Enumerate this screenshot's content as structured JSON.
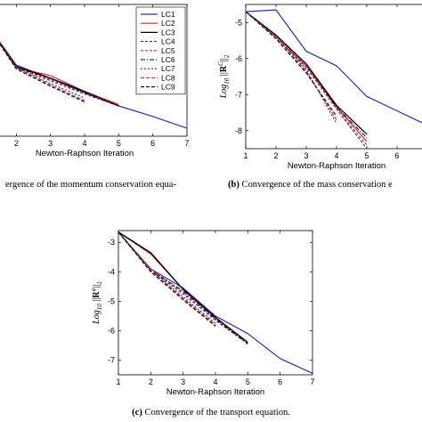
{
  "series_style": [
    {
      "color": "#2b2fa8",
      "dash": "",
      "width": 1.2
    },
    {
      "color": "#cc2a2a",
      "dash": "",
      "width": 1.2
    },
    {
      "color": "#000000",
      "dash": "",
      "width": 1.3
    },
    {
      "color": "#2b2fa8",
      "dash": "3,2",
      "width": 1.1
    },
    {
      "color": "#cc2a2a",
      "dash": "3,2",
      "width": 1.1
    },
    {
      "color": "#000000",
      "dash": "5,2,1,2",
      "width": 1.0
    },
    {
      "color": "#2b2fa8",
      "dash": "2,2",
      "width": 1.1
    },
    {
      "color": "#cc2a2a",
      "dash": "4,2",
      "width": 1.1
    },
    {
      "color": "#000000",
      "dash": "4,2",
      "width": 1.1
    }
  ],
  "chart_data": [
    {
      "type": "line",
      "xlabel": "Newton-Raphson Iteration",
      "ylabel": "",
      "xlim": [
        1,
        7
      ],
      "ylim": [
        -6.5,
        -1.5
      ],
      "xticks": [
        2,
        3,
        4,
        5,
        6,
        7
      ],
      "yticks": [],
      "caption": "ergence of the momentum conservation equa-",
      "caption_bold": "",
      "legend": {
        "position": "top-right",
        "entries": [
          "LC1",
          "LC2",
          "LC3",
          "LC4",
          "LC5",
          "LC6",
          "LC7",
          "LC8",
          "LC9"
        ]
      },
      "series": [
        {
          "name": "LC1",
          "x": [
            1,
            2,
            3,
            4,
            5,
            6,
            7
          ],
          "y": [
            -2.0,
            -3.8,
            -4.3,
            -4.85,
            -5.35,
            -5.75,
            -6.2
          ]
        },
        {
          "name": "LC2",
          "x": [
            1,
            2,
            3,
            4,
            5
          ],
          "y": [
            -2.0,
            -3.9,
            -4.2,
            -4.8,
            -5.3
          ]
        },
        {
          "name": "LC3",
          "x": [
            1,
            2,
            3,
            4,
            5
          ],
          "y": [
            -2.0,
            -3.85,
            -4.3,
            -4.8,
            -5.35
          ]
        },
        {
          "name": "LC4",
          "x": [
            1,
            2,
            3,
            4,
            5
          ],
          "y": [
            -2.0,
            -3.9,
            -4.4,
            -4.9,
            -5.35
          ]
        },
        {
          "name": "LC5",
          "x": [
            1,
            2,
            3,
            4,
            5
          ],
          "y": [
            -2.0,
            -3.9,
            -4.35,
            -4.85,
            -5.3
          ]
        },
        {
          "name": "LC6",
          "x": [
            1,
            2,
            3,
            4,
            5
          ],
          "y": [
            -2.0,
            -3.9,
            -4.3,
            -4.85,
            -5.35
          ]
        },
        {
          "name": "LC7",
          "x": [
            1,
            2,
            3,
            4
          ],
          "y": [
            -2.0,
            -3.9,
            -4.5,
            -5.05
          ]
        },
        {
          "name": "LC8",
          "x": [
            1,
            2,
            3,
            4
          ],
          "y": [
            -2.0,
            -3.9,
            -4.55,
            -5.15
          ]
        },
        {
          "name": "LC9",
          "x": [
            1,
            2,
            3,
            4
          ],
          "y": [
            -2.0,
            -3.95,
            -4.6,
            -5.2
          ]
        }
      ]
    },
    {
      "type": "line",
      "xlabel": "Newton-Raphson Iteration",
      "ylabel": "Log10 ||R^C||2",
      "xlim": [
        1,
        7
      ],
      "ylim": [
        -8.5,
        -4.5
      ],
      "xticks": [
        1,
        2,
        3,
        4,
        5,
        6,
        7
      ],
      "yticks": [
        -5,
        -6,
        -7,
        -8
      ],
      "caption": "Convergence of the mass conservation e",
      "caption_bold": "(b)",
      "legend": null,
      "series": [
        {
          "name": "LC1",
          "x": [
            1,
            2,
            3,
            4,
            5,
            6,
            7
          ],
          "y": [
            -4.7,
            -4.65,
            -5.8,
            -6.2,
            -7.05,
            -7.45,
            -7.85
          ]
        },
        {
          "name": "LC2",
          "x": [
            1,
            2,
            3,
            4,
            5
          ],
          "y": [
            -4.7,
            -5.4,
            -6.2,
            -7.35,
            -8.3
          ]
        },
        {
          "name": "LC3",
          "x": [
            1,
            2,
            3,
            4,
            5
          ],
          "y": [
            -4.7,
            -5.35,
            -6.15,
            -7.3,
            -8.1
          ]
        },
        {
          "name": "LC4",
          "x": [
            1,
            2,
            3,
            4,
            5
          ],
          "y": [
            -4.7,
            -5.4,
            -6.25,
            -7.4,
            -8.5
          ]
        },
        {
          "name": "LC5",
          "x": [
            1,
            2,
            3,
            4,
            5
          ],
          "y": [
            -4.7,
            -5.4,
            -6.2,
            -7.4,
            -8.4
          ]
        },
        {
          "name": "LC6",
          "x": [
            1,
            2,
            3,
            4,
            5
          ],
          "y": [
            -4.7,
            -5.35,
            -6.15,
            -7.35,
            -8.2
          ]
        },
        {
          "name": "LC7",
          "x": [
            1,
            2,
            3,
            4
          ],
          "y": [
            -4.7,
            -5.4,
            -6.3,
            -7.8
          ]
        },
        {
          "name": "LC8",
          "x": [
            1,
            2,
            3,
            4
          ],
          "y": [
            -4.7,
            -5.4,
            -6.35,
            -7.7
          ]
        },
        {
          "name": "LC9",
          "x": [
            1,
            2,
            3,
            4
          ],
          "y": [
            -4.7,
            -5.45,
            -6.4,
            -7.6
          ]
        }
      ]
    },
    {
      "type": "line",
      "xlabel": "Newton-Raphson Iteration",
      "ylabel": "Log10 ||R^φ||2",
      "xlim": [
        1,
        7
      ],
      "ylim": [
        -7.5,
        -2.6
      ],
      "xticks": [
        1,
        2,
        3,
        4,
        5,
        6,
        7
      ],
      "yticks": [
        -3,
        -4,
        -5,
        -6,
        -7
      ],
      "caption": "Convergence of the transport equation.",
      "caption_bold": "(c)",
      "legend": null,
      "series": [
        {
          "name": "LC1",
          "x": [
            1,
            2,
            3,
            4,
            5,
            6,
            7
          ],
          "y": [
            -2.65,
            -3.9,
            -4.55,
            -5.5,
            -6.1,
            -6.95,
            -7.45
          ]
        },
        {
          "name": "LC2",
          "x": [
            1,
            2,
            3,
            4,
            5
          ],
          "y": [
            -2.65,
            -3.4,
            -4.6,
            -5.55,
            -6.4
          ]
        },
        {
          "name": "LC3",
          "x": [
            1,
            2,
            3,
            4,
            5
          ],
          "y": [
            -2.65,
            -3.35,
            -4.6,
            -5.55,
            -6.4
          ]
        },
        {
          "name": "LC4",
          "x": [
            1,
            2,
            3,
            4,
            5
          ],
          "y": [
            -2.65,
            -3.95,
            -4.75,
            -5.65,
            -6.45
          ]
        },
        {
          "name": "LC5",
          "x": [
            1,
            2,
            3,
            4,
            5
          ],
          "y": [
            -2.65,
            -3.9,
            -4.7,
            -5.6,
            -6.45
          ]
        },
        {
          "name": "LC6",
          "x": [
            1,
            2,
            3,
            4,
            5
          ],
          "y": [
            -2.65,
            -3.95,
            -4.65,
            -5.6,
            -6.45
          ]
        },
        {
          "name": "LC7",
          "x": [
            1,
            2,
            3,
            4
          ],
          "y": [
            -2.65,
            -3.95,
            -4.85,
            -5.75
          ]
        },
        {
          "name": "LC8",
          "x": [
            1,
            2,
            3,
            4
          ],
          "y": [
            -2.65,
            -3.95,
            -4.9,
            -5.8
          ]
        },
        {
          "name": "LC9",
          "x": [
            1,
            2,
            3,
            4
          ],
          "y": [
            -2.65,
            -4.0,
            -4.95,
            -5.85
          ]
        }
      ]
    }
  ]
}
